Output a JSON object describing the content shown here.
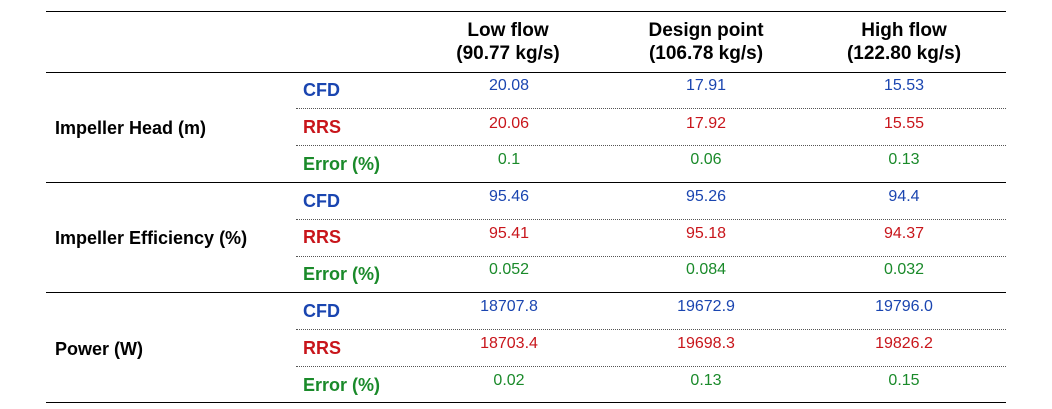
{
  "columns": [
    {
      "line1": "Low flow",
      "line2": "(90.77 kg/s)"
    },
    {
      "line1": "Design point",
      "line2": "(106.78 kg/s)"
    },
    {
      "line1": "High flow",
      "line2": "(122.80 kg/s)"
    }
  ],
  "colors": {
    "cfd": "#1a45b0",
    "rrs": "#c8151b",
    "error": "#1a8a2a"
  },
  "groups": [
    {
      "metric": "Impeller Head (m)",
      "rows": [
        {
          "type": "CFD",
          "values": [
            "20.08",
            "17.91",
            "15.53"
          ]
        },
        {
          "type": "RRS",
          "values": [
            "20.06",
            "17.92",
            "15.55"
          ]
        },
        {
          "type": "Error (%)",
          "values": [
            "0.1",
            "0.06",
            "0.13"
          ]
        }
      ]
    },
    {
      "metric": "Impeller Efficiency (%)",
      "rows": [
        {
          "type": "CFD",
          "values": [
            "95.46",
            "95.26",
            "94.4"
          ]
        },
        {
          "type": "RRS",
          "values": [
            "95.41",
            "95.18",
            "94.37"
          ]
        },
        {
          "type": "Error (%)",
          "values": [
            "0.052",
            "0.084",
            "0.032"
          ]
        }
      ]
    },
    {
      "metric": "Power (W)",
      "rows": [
        {
          "type": "CFD",
          "values": [
            "18707.8",
            "19672.9",
            "19796.0"
          ]
        },
        {
          "type": "RRS",
          "values": [
            "18703.4",
            "19698.3",
            "19826.2"
          ]
        },
        {
          "type": "Error (%)",
          "values": [
            "0.02",
            "0.13",
            "0.15"
          ]
        }
      ]
    }
  ]
}
